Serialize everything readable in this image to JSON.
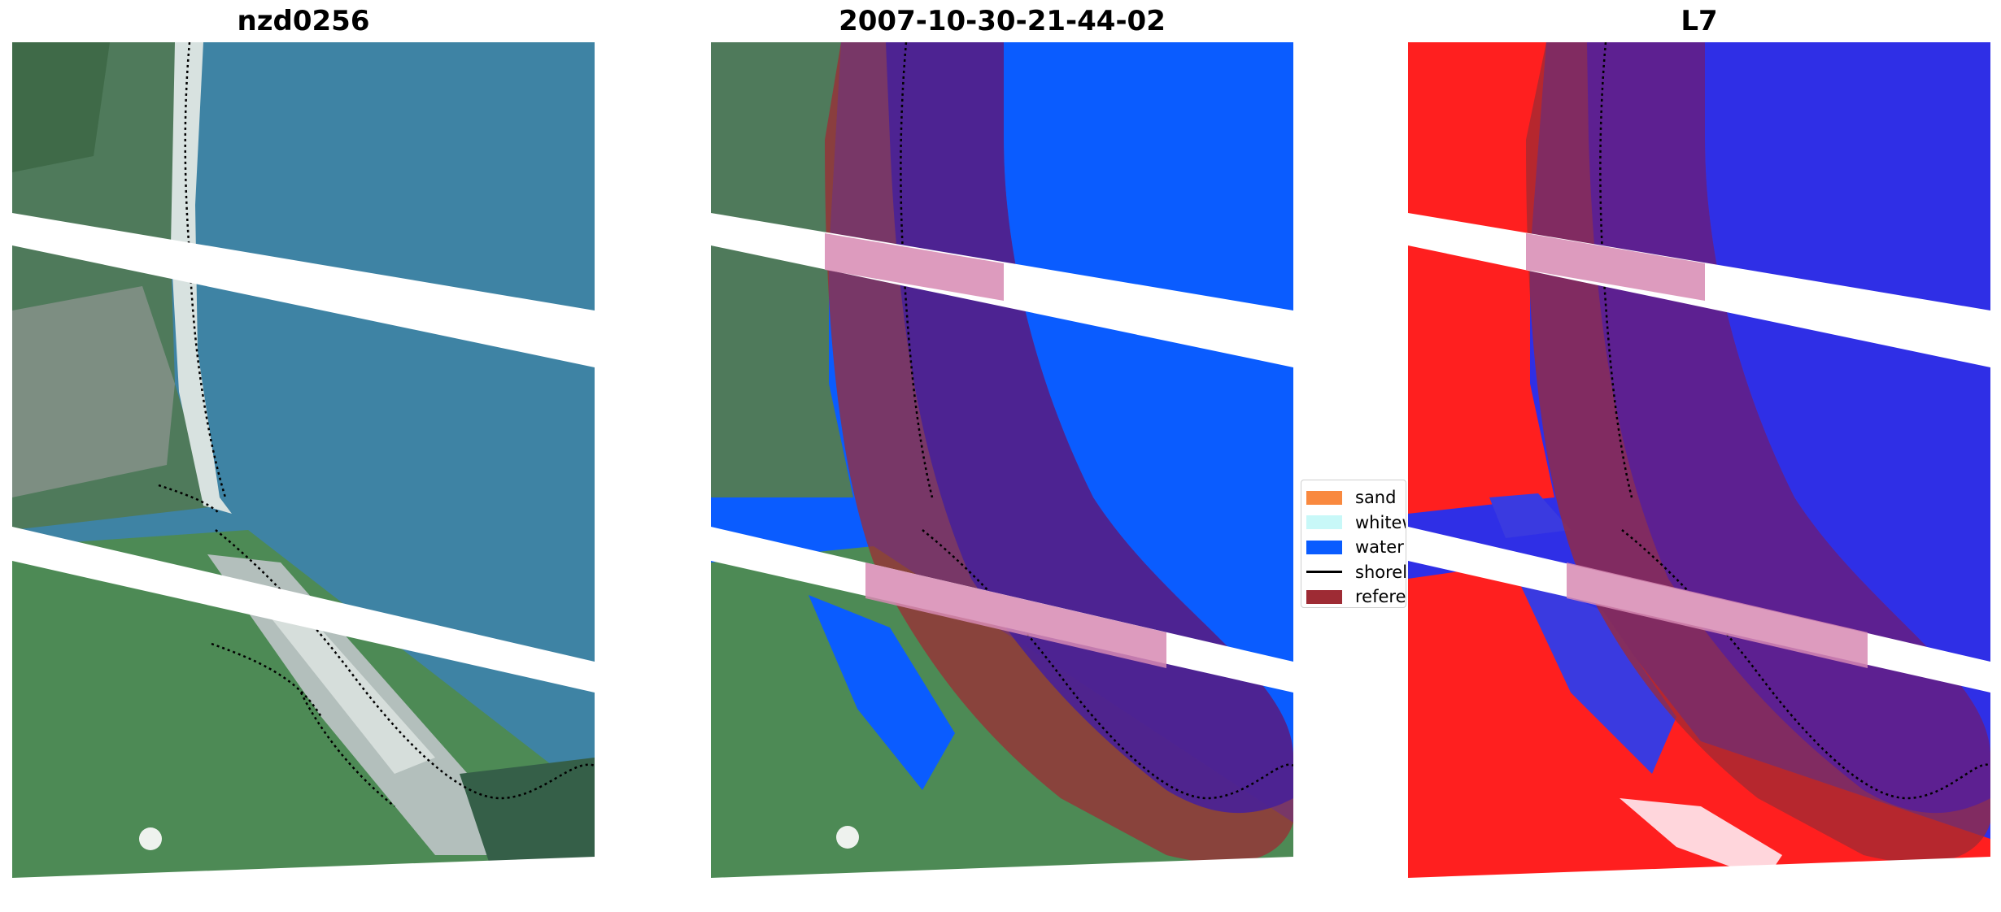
{
  "panels": [
    {
      "title": "nzd0256",
      "kind": "rgb"
    },
    {
      "title": "2007-10-30-21-44-02",
      "kind": "classified"
    },
    {
      "title": "L7",
      "kind": "index"
    }
  ],
  "legend": {
    "items": [
      {
        "label": "sand",
        "color": "#f9893f",
        "type": "patch"
      },
      {
        "label": "whitewater",
        "color": "#c8f8f8",
        "type": "patch"
      },
      {
        "label": "water",
        "color": "#0a5cff",
        "type": "patch"
      },
      {
        "label": "shoreline",
        "color": "#000000",
        "type": "line"
      },
      {
        "label": "reference shoreline buffer",
        "color": "#9e2b34",
        "type": "patch"
      }
    ]
  },
  "colors": {
    "ocean": "#3a7fa0",
    "land": "#4a7a50",
    "class_water": "#0a5cff",
    "index_water": "#2a2aee",
    "index_land": "#ff1a1a",
    "buffer": "#9e2b34"
  }
}
